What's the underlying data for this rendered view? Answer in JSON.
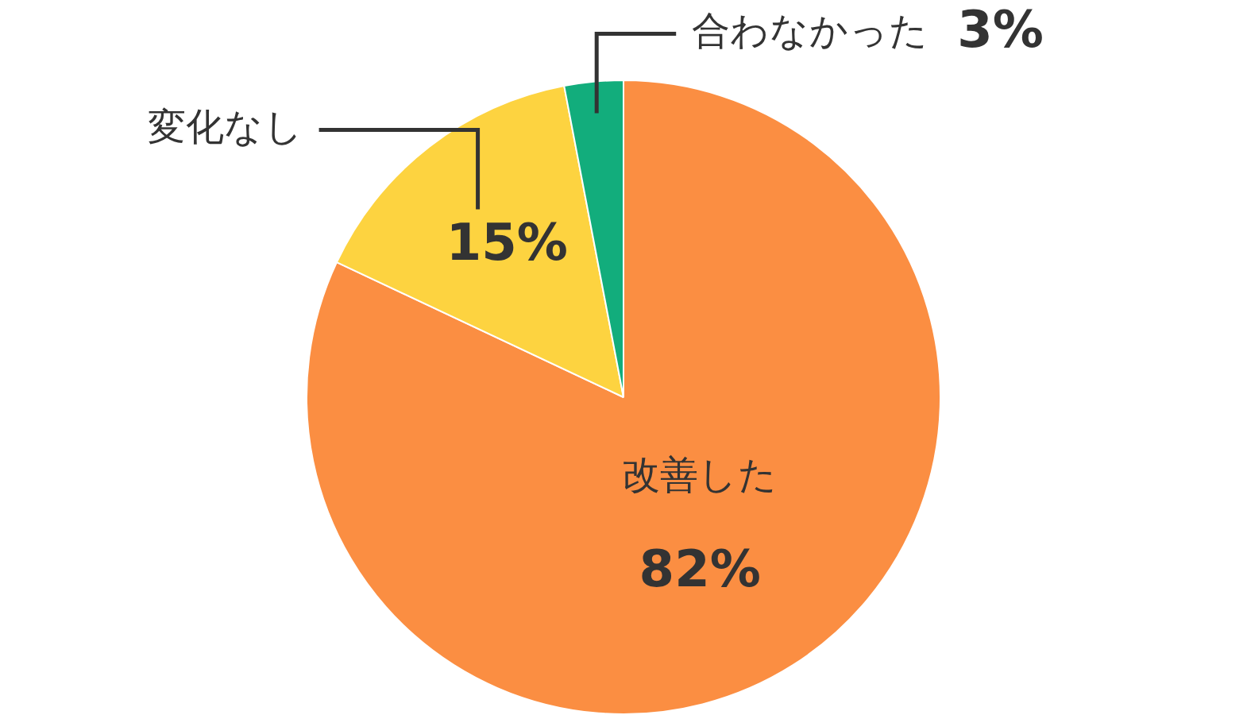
{
  "chart_data": {
    "type": "pie",
    "categories": [
      "改善した",
      "変化なし",
      "合わなかった"
    ],
    "values": [
      82,
      15,
      3
    ],
    "colors": [
      "#fb8e42",
      "#fdd340",
      "#12ad7c"
    ],
    "value_labels": [
      "82%",
      "15%",
      "3%"
    ],
    "legend": false
  }
}
